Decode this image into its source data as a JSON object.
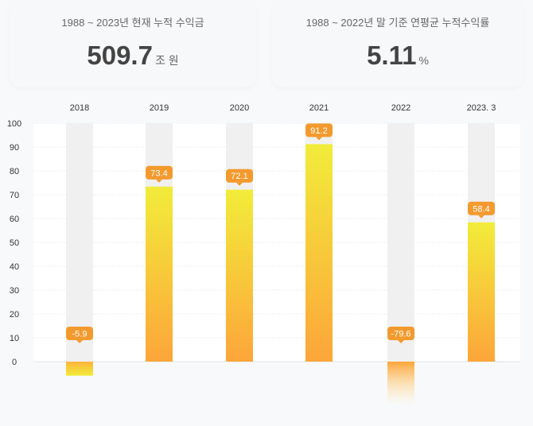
{
  "summary": [
    {
      "title": "1988 ~ 2023년 현재 누적 수익금",
      "value": "509.7",
      "unit": "조 원"
    },
    {
      "title": "1988 ~ 2022년 말 기준 연평균 누적수익률",
      "value": "5.11",
      "unit": "%"
    }
  ],
  "chart_data": {
    "type": "bar",
    "categories": [
      "2018",
      "2019",
      "2020",
      "2021",
      "2022",
      "2023. 3"
    ],
    "values": [
      -5.9,
      73.4,
      72.1,
      91.2,
      -79.6,
      58.4
    ],
    "data_labels": [
      "-5.9",
      "73.4",
      "72.1",
      "91.2",
      "-79.6",
      "58.4"
    ],
    "yticks": [
      "0",
      "10",
      "20",
      "30",
      "40",
      "50",
      "60",
      "70",
      "80",
      "90",
      "100"
    ],
    "ylim": [
      0,
      100
    ],
    "grid": true,
    "colors": {
      "bar_top": "#f2ec3a",
      "bar_bottom": "#fda53a",
      "label": "#f39a2e",
      "track": "#f0f0f0"
    }
  }
}
